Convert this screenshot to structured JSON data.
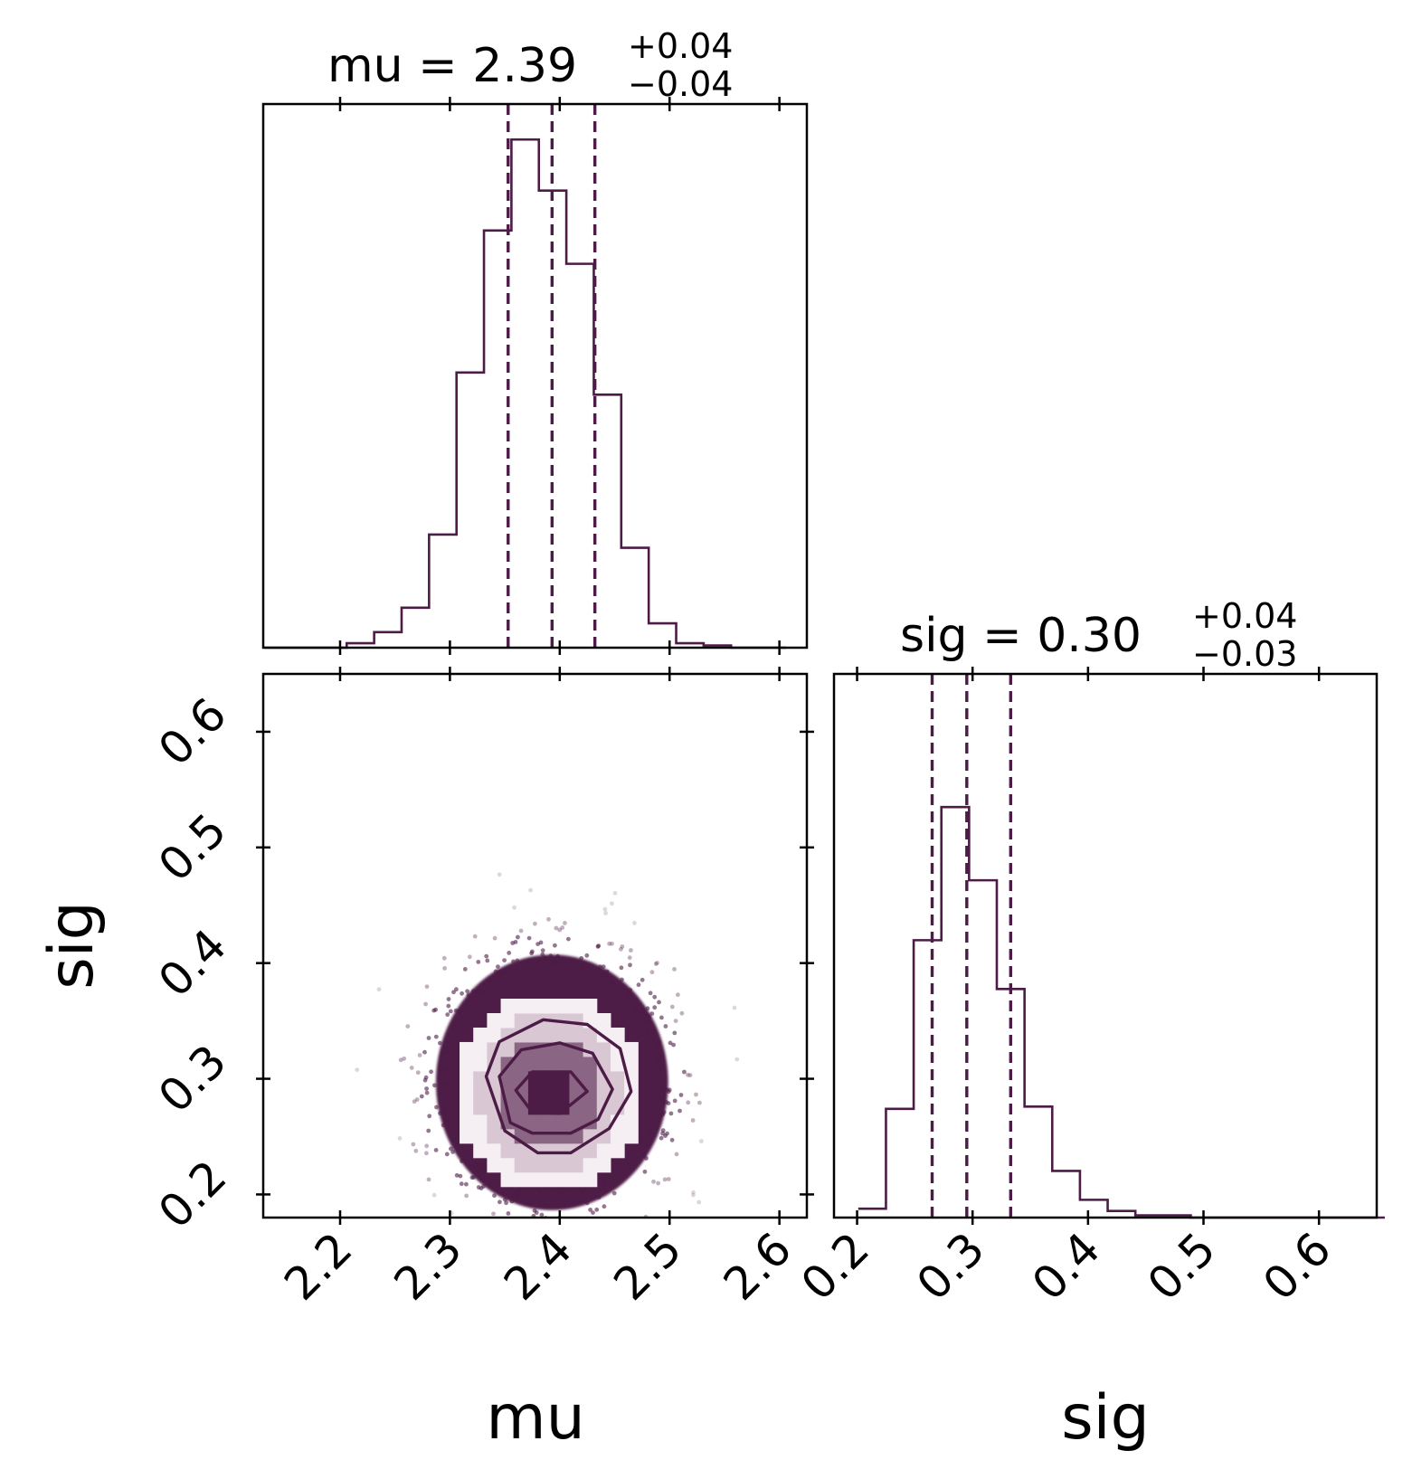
{
  "chart_data": [
    {
      "type": "histogram",
      "panel": "mu-marginal",
      "title": {
        "param": "mu",
        "median": "2.39",
        "plus": "+0.04",
        "minus": "−0.04"
      },
      "xlim": [
        2.13,
        2.625
      ],
      "x_ticks": [
        2.2,
        2.3,
        2.4,
        2.5,
        2.6
      ],
      "bin_edges": [
        2.131,
        2.156,
        2.181,
        2.206,
        2.231,
        2.256,
        2.281,
        2.306,
        2.331,
        2.356,
        2.381,
        2.406,
        2.431,
        2.456,
        2.481,
        2.506,
        2.531,
        2.556,
        2.581,
        2.606
      ],
      "counts": [
        0.0,
        0.0,
        0.0,
        0.2,
        0.7,
        1.8,
        5.1,
        12.4,
        18.8,
        22.9,
        20.6,
        17.3,
        11.4,
        4.5,
        1.1,
        0.2,
        0.1,
        0.0,
        0.0
      ],
      "ylim": [
        0,
        24.5
      ],
      "quantiles": [
        2.353,
        2.393,
        2.432
      ],
      "color": "#4d1c46"
    },
    {
      "type": "scatter",
      "panel": "mu-sig-joint",
      "xlabel": "mu",
      "ylabel": "sig",
      "xlim": [
        2.13,
        2.625
      ],
      "ylim": [
        0.18,
        0.65
      ],
      "x_ticks": [
        2.2,
        2.3,
        2.4,
        2.5,
        2.6
      ],
      "y_ticks": [
        0.2,
        0.3,
        0.4,
        0.5,
        0.6
      ],
      "samples_center": [
        2.393,
        0.3
      ],
      "samples_spread": [
        0.045,
        0.047
      ],
      "density_peak": [
        2.39,
        0.288
      ],
      "contours": [
        {
          "level": "inner",
          "points": [
            [
              2.36,
              0.29
            ],
            [
              2.375,
              0.271
            ],
            [
              2.4,
              0.27
            ],
            [
              2.425,
              0.289
            ],
            [
              2.41,
              0.306
            ],
            [
              2.375,
              0.306
            ]
          ]
        },
        {
          "level": "middle",
          "points": [
            [
              2.345,
              0.302
            ],
            [
              2.355,
              0.262
            ],
            [
              2.375,
              0.253
            ],
            [
              2.41,
              0.253
            ],
            [
              2.435,
              0.265
            ],
            [
              2.448,
              0.291
            ],
            [
              2.43,
              0.322
            ],
            [
              2.4,
              0.331
            ],
            [
              2.365,
              0.325
            ]
          ]
        },
        {
          "level": "outer",
          "points": [
            [
              2.333,
              0.302
            ],
            [
              2.35,
              0.255
            ],
            [
              2.38,
              0.236
            ],
            [
              2.41,
              0.236
            ],
            [
              2.445,
              0.257
            ],
            [
              2.465,
              0.289
            ],
            [
              2.455,
              0.326
            ],
            [
              2.425,
              0.347
            ],
            [
              2.385,
              0.351
            ],
            [
              2.345,
              0.332
            ]
          ]
        }
      ],
      "color": "#4d1c46"
    },
    {
      "type": "histogram",
      "panel": "sig-marginal",
      "xlabel": "sig",
      "title": {
        "param": "sig",
        "median": "0.30",
        "plus": "+0.04",
        "minus": "−0.03"
      },
      "xlim": [
        0.18,
        0.65
      ],
      "x_ticks": [
        0.2,
        0.3,
        0.4,
        0.5,
        0.6
      ],
      "bin_edges": [
        0.201,
        0.225,
        0.249,
        0.273,
        0.297,
        0.321,
        0.345,
        0.369,
        0.393,
        0.417,
        0.441,
        0.465,
        0.489,
        0.513,
        0.537,
        0.561,
        0.585,
        0.609,
        0.633,
        0.657
      ],
      "counts": [
        0.4,
        4.9,
        12.5,
        18.5,
        15.2,
        10.3,
        5.0,
        2.1,
        0.8,
        0.3,
        0.1,
        0.1,
        0.0,
        0.0,
        0.0,
        0.0,
        0.0,
        0.0,
        0.0
      ],
      "ylim": [
        0,
        24.5
      ],
      "quantiles": [
        0.265,
        0.295,
        0.333
      ],
      "color": "#4d1c46"
    }
  ]
}
